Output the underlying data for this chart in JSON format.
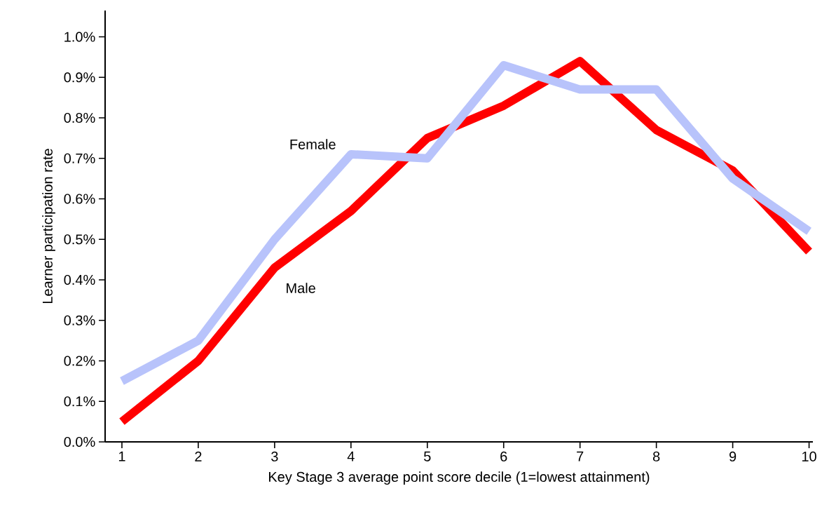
{
  "chart_data": {
    "type": "line",
    "xlabel": "Key Stage 3 average point score decile (1=lowest attainment)",
    "ylabel": "Learner participation rate",
    "x": [
      1,
      2,
      3,
      4,
      5,
      6,
      7,
      8,
      9,
      10
    ],
    "series": [
      {
        "name": "Male",
        "color": "#ff0000",
        "values": [
          0.05,
          0.2,
          0.43,
          0.57,
          0.75,
          0.83,
          0.94,
          0.77,
          0.67,
          0.47
        ]
      },
      {
        "name": "Female",
        "color": "#b8c3fb",
        "values": [
          0.15,
          0.25,
          0.5,
          0.71,
          0.7,
          0.93,
          0.87,
          0.87,
          0.65,
          0.52
        ]
      }
    ],
    "xlim": [
      0.78,
      10.05
    ],
    "ylim": [
      0,
      1.065
    ],
    "xticks": [
      1,
      2,
      3,
      4,
      5,
      6,
      7,
      8,
      9,
      10
    ],
    "yticks": [
      {
        "value": 0.0,
        "label": "0.0%"
      },
      {
        "value": 0.1,
        "label": "0.1%"
      },
      {
        "value": 0.2,
        "label": "0.2%"
      },
      {
        "value": 0.3,
        "label": "0.3%"
      },
      {
        "value": 0.4,
        "label": "0.4%"
      },
      {
        "value": 0.5,
        "label": "0.5%"
      },
      {
        "value": 0.6,
        "label": "0.6%"
      },
      {
        "value": 0.7,
        "label": "0.7%"
      },
      {
        "value": 0.8,
        "label": "0.8%"
      },
      {
        "value": 0.9,
        "label": "0.9%"
      },
      {
        "value": 1.0,
        "label": "1.0%"
      }
    ],
    "legend": false,
    "grid": false,
    "marker": "none",
    "line_style": "solid"
  }
}
